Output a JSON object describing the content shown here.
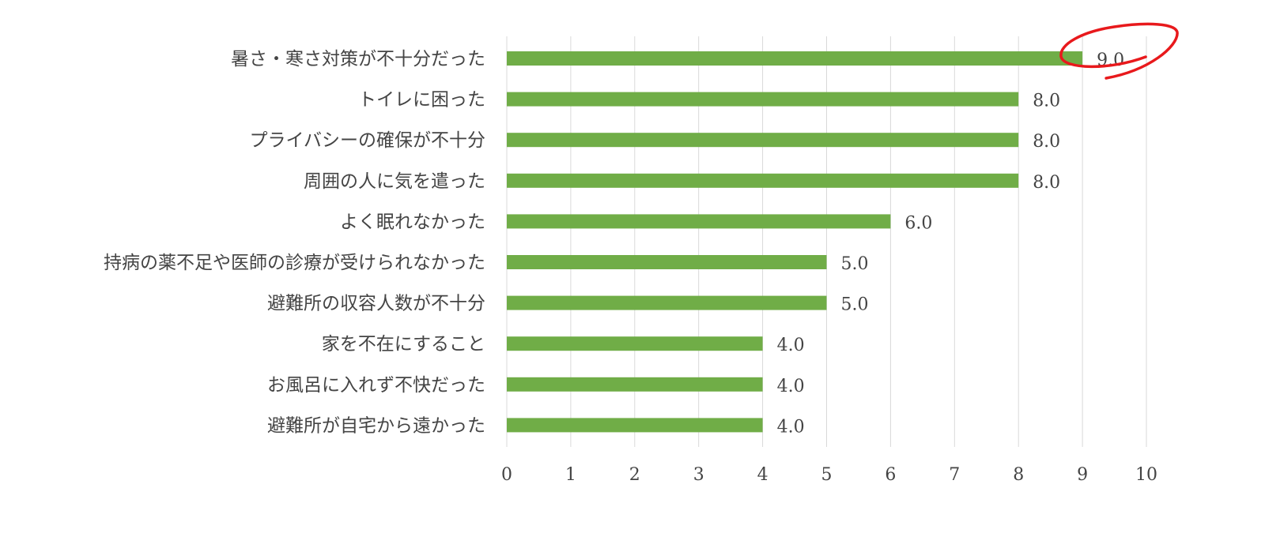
{
  "chart_data": {
    "type": "bar",
    "orientation": "horizontal",
    "categories": [
      "暑さ・寒さ対策が不十分だった",
      "トイレに困った",
      "プライバシーの確保が不十分",
      "周囲の人に気を遣った",
      "よく眠れなかった",
      "持病の薬不足や医師の診療が受けられなかった",
      "避難所の収容人数が不十分",
      "家を不在にすること",
      "お風呂に入れず不快だった",
      "避難所が自宅から遠かった"
    ],
    "values": [
      9.0,
      8.0,
      8.0,
      8.0,
      6.0,
      5.0,
      5.0,
      4.0,
      4.0,
      4.0
    ],
    "value_labels": [
      "9.0",
      "8.0",
      "8.0",
      "8.0",
      "6.0",
      "5.0",
      "5.0",
      "4.0",
      "4.0",
      "4.0"
    ],
    "xlim": [
      0,
      10
    ],
    "x_ticks": [
      "0",
      "1",
      "2",
      "3",
      "4",
      "5",
      "6",
      "7",
      "8",
      "9",
      "10"
    ],
    "grid": "vertical",
    "bar_color": "#70ad47",
    "grid_color": "#d9d9d9",
    "highlight": {
      "category_index": 0,
      "shape": "hand-drawn ellipse",
      "color": "#e8191c"
    },
    "title": "",
    "xlabel": "",
    "ylabel": ""
  }
}
